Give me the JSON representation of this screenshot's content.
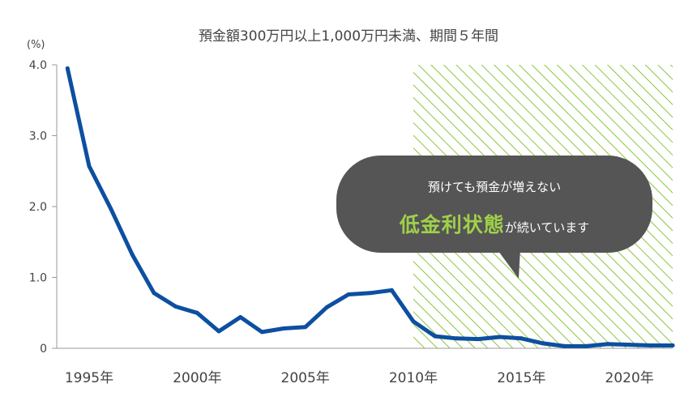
{
  "chart_data": {
    "type": "line",
    "title": "預金額300万円以上1,000万円未満、期間５年間",
    "ylabel": "(%)",
    "xlabel": "",
    "ylim": [
      0,
      4.0
    ],
    "xlim": [
      1993.5,
      2022
    ],
    "y_ticks": [
      {
        "value": 0,
        "label": "0"
      },
      {
        "value": 1.0,
        "label": "1.0"
      },
      {
        "value": 2.0,
        "label": "2.0"
      },
      {
        "value": 3.0,
        "label": "3.0"
      },
      {
        "value": 4.0,
        "label": "4.0"
      }
    ],
    "x_ticks": [
      {
        "value": 1995,
        "label": "1995年"
      },
      {
        "value": 2000,
        "label": "2000年"
      },
      {
        "value": 2005,
        "label": "2005年"
      },
      {
        "value": 2010,
        "label": "2010年"
      },
      {
        "value": 2015,
        "label": "2015年"
      },
      {
        "value": 2020,
        "label": "2020年"
      }
    ],
    "series": [
      {
        "color": "#0d4fa0",
        "x": [
          1994,
          1995,
          1996,
          1997,
          1998,
          1999,
          2000,
          2001,
          2002,
          2003,
          2004,
          2005,
          2006,
          2007,
          2008,
          2009,
          2010,
          2011,
          2012,
          2013,
          2014,
          2015,
          2016,
          2017,
          2018,
          2019,
          2020,
          2021,
          2022
        ],
        "y": [
          3.95,
          2.57,
          1.97,
          1.32,
          0.78,
          0.59,
          0.5,
          0.24,
          0.44,
          0.23,
          0.28,
          0.3,
          0.58,
          0.76,
          0.78,
          0.82,
          0.38,
          0.17,
          0.14,
          0.13,
          0.16,
          0.14,
          0.07,
          0.03,
          0.03,
          0.06,
          0.05,
          0.04,
          0.04
        ]
      }
    ],
    "shaded_region": {
      "from": 2010,
      "to": 2022,
      "color": "#8cc63f",
      "pattern": "diagonal-hatch"
    },
    "callout": {
      "line1": "預けても預金が増えない",
      "highlight": "低金利状態",
      "line2_rest": "が続いています",
      "bubble_color": "#555555",
      "highlight_color": "#9fd04a"
    }
  }
}
